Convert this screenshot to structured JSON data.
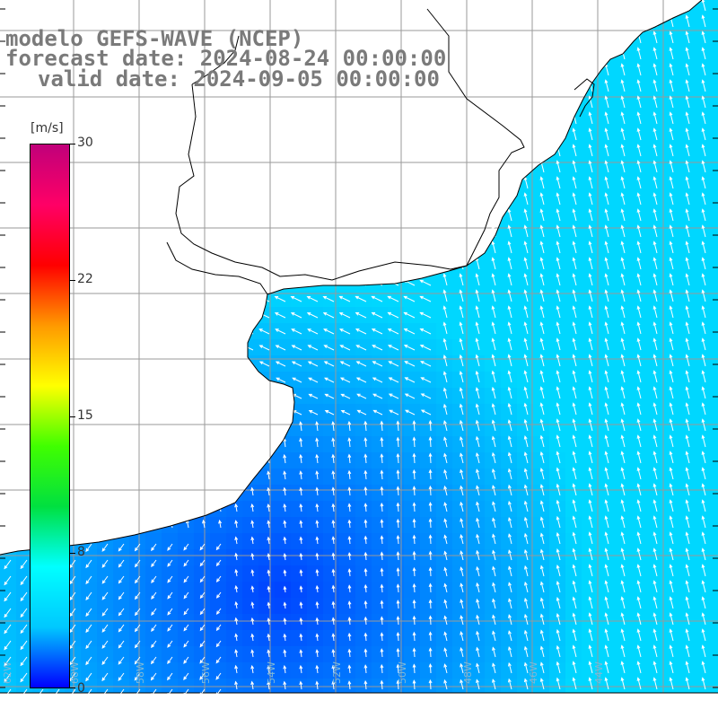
{
  "title": {
    "line1": "modelo GEFS-WAVE (NCEP)",
    "line2": "forecast date: 2024-08-24 00:00:00",
    "line3": "valid date: 2024-09-05 00:00:00"
  },
  "colorbar": {
    "unit": "[m/s]",
    "min": 0,
    "max": 30,
    "ticks": [
      "30",
      "22",
      "15",
      "8",
      "0"
    ],
    "tick_values": [
      30,
      22,
      15,
      8,
      0
    ],
    "colors": [
      "#0000ff",
      "#00c8ff",
      "#00ffff",
      "#00e040",
      "#40ff00",
      "#ffff00",
      "#ff9900",
      "#ff0000",
      "#ff0066",
      "#c0007a"
    ]
  },
  "map": {
    "variable": "wind speed",
    "ocean_color_range": [
      "#0030ff",
      "#00d4ff"
    ],
    "land_color": "#ffffff",
    "coastline_color": "#000000",
    "grid_color": "#9a9a9a",
    "arrow_color": "#ffffff",
    "longitude_labels": [
      "62W",
      "60W",
      "58W",
      "56W",
      "54W",
      "52W",
      "50W",
      "48W",
      "46W",
      "44W"
    ]
  }
}
